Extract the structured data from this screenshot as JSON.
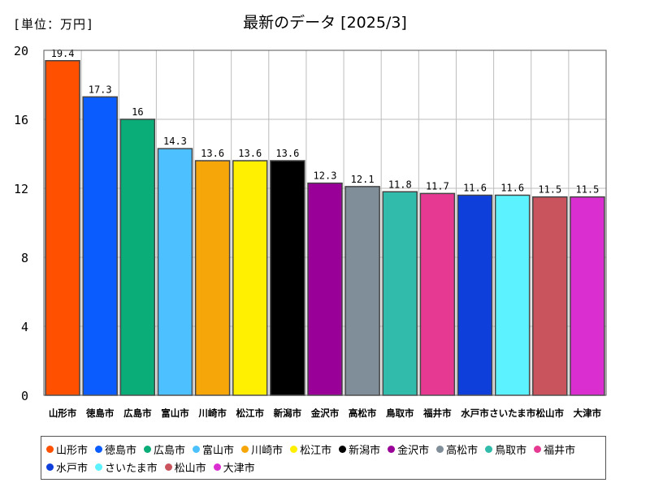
{
  "header": {
    "unit_label": "[単位：万円]",
    "title": "最新のデータ [2025/3]"
  },
  "chart_data": {
    "type": "bar",
    "title": "最新のデータ [2025/3]",
    "unit": "[単位：万円]",
    "xlabel": "",
    "ylabel": "",
    "ylim": [
      0,
      20
    ],
    "yticks": [
      0,
      4,
      8,
      12,
      16,
      20
    ],
    "grid": true,
    "legend_position": "bottom",
    "categories": [
      "山形市",
      "徳島市",
      "広島市",
      "富山市",
      "川崎市",
      "松江市",
      "新潟市",
      "金沢市",
      "高松市",
      "鳥取市",
      "福井市",
      "水戸市",
      "さいたま市",
      "松山市",
      "大津市"
    ],
    "values": [
      19.4,
      17.3,
      16,
      14.3,
      13.6,
      13.6,
      13.6,
      12.3,
      12.1,
      11.8,
      11.7,
      11.6,
      11.6,
      11.5,
      11.5
    ],
    "value_labels": [
      "19.4",
      "17.3",
      "16",
      "14.3",
      "13.6",
      "13.6",
      "13.6",
      "12.3",
      "12.1",
      "11.8",
      "11.7",
      "11.6",
      "11.6",
      "11.5",
      "11.5"
    ],
    "colors": [
      "#ff5000",
      "#0a5cff",
      "#0aad77",
      "#4dc1ff",
      "#f7a60a",
      "#ffef00",
      "#000000",
      "#980098",
      "#808e99",
      "#30bbaa",
      "#e63a92",
      "#0e3fdb",
      "#5cf2ff",
      "#c9545e",
      "#db2ed1"
    ]
  }
}
